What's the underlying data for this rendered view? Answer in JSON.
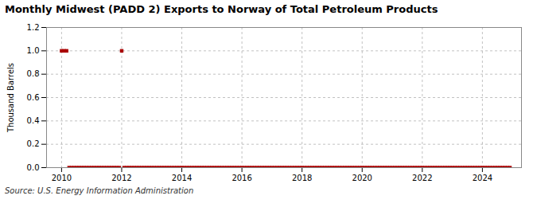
{
  "chart_data": {
    "type": "scatter",
    "title": "Monthly Midwest (PADD 2) Exports to Norway of Total Petroleum Products",
    "ylabel": "Thousand Barrels",
    "source": "Source: U.S. Energy Information Administration",
    "color": "#AA0000",
    "marker": "square",
    "grid": true,
    "xlim": [
      2009.5,
      2025.3
    ],
    "xticks": [
      2010,
      2012,
      2014,
      2016,
      2018,
      2020,
      2022,
      2024
    ],
    "ylim": [
      0.0,
      1.2
    ],
    "yticks": [
      {
        "value": 0.0,
        "label": "0.0"
      },
      0.2,
      0.4,
      0.6,
      0.8,
      {
        "value": 1.0,
        "label": "1.0"
      },
      1.2
    ],
    "x": [
      2010.0,
      2010.083,
      2010.167,
      2010.25,
      2010.333,
      2010.417,
      2010.5,
      2010.583,
      2010.667,
      2010.75,
      2010.833,
      2010.917,
      2011.0,
      2011.083,
      2011.167,
      2011.25,
      2011.333,
      2011.417,
      2011.5,
      2011.583,
      2011.667,
      2011.75,
      2011.833,
      2011.917,
      2012.0,
      2012.083,
      2012.167,
      2012.25,
      2012.333,
      2012.417,
      2012.5,
      2012.583,
      2012.667,
      2012.75,
      2012.833,
      2012.917,
      2013.0,
      2013.083,
      2013.167,
      2013.25,
      2013.333,
      2013.417,
      2013.5,
      2013.583,
      2013.667,
      2013.75,
      2013.833,
      2013.917,
      2014.0,
      2014.083,
      2014.167,
      2014.25,
      2014.333,
      2014.417,
      2014.5,
      2014.583,
      2014.667,
      2014.75,
      2014.833,
      2014.917,
      2015.0,
      2015.083,
      2015.167,
      2015.25,
      2015.333,
      2015.417,
      2015.5,
      2015.583,
      2015.667,
      2015.75,
      2015.833,
      2015.917,
      2016.0,
      2016.083,
      2016.167,
      2016.25,
      2016.333,
      2016.417,
      2016.5,
      2016.583,
      2016.667,
      2016.75,
      2016.833,
      2016.917,
      2017.0,
      2017.083,
      2017.167,
      2017.25,
      2017.333,
      2017.417,
      2017.5,
      2017.583,
      2017.667,
      2017.75,
      2017.833,
      2017.917,
      2018.0,
      2018.083,
      2018.167,
      2018.25,
      2018.333,
      2018.417,
      2018.5,
      2018.583,
      2018.667,
      2018.75,
      2018.833,
      2018.917,
      2019.0,
      2019.083,
      2019.167,
      2019.25,
      2019.333,
      2019.417,
      2019.5,
      2019.583,
      2019.667,
      2019.75,
      2019.833,
      2019.917,
      2020.0,
      2020.083,
      2020.167,
      2020.25,
      2020.333,
      2020.417,
      2020.5,
      2020.583,
      2020.667,
      2020.75,
      2020.833,
      2020.917,
      2021.0,
      2021.083,
      2021.167,
      2021.25,
      2021.333,
      2021.417,
      2021.5,
      2021.583,
      2021.667,
      2021.75,
      2021.833,
      2021.917,
      2022.0,
      2022.083,
      2022.167,
      2022.25,
      2022.333,
      2022.417,
      2022.5,
      2022.583,
      2022.667,
      2022.75,
      2022.833,
      2022.917,
      2023.0,
      2023.083,
      2023.167,
      2023.25,
      2023.333,
      2023.417,
      2023.5,
      2023.583,
      2023.667,
      2023.75,
      2023.833,
      2023.917,
      2024.0,
      2024.083,
      2024.167,
      2024.25,
      2024.333,
      2024.417,
      2024.5,
      2024.583,
      2024.667,
      2024.75,
      2024.833,
      2024.917
    ],
    "values": [
      1.0,
      1.0,
      1.0,
      0.0,
      0.0,
      0.0,
      0.0,
      0.0,
      0.0,
      0.0,
      0.0,
      0.0,
      0.0,
      0.0,
      0.0,
      0.0,
      0.0,
      0.0,
      0.0,
      0.0,
      0.0,
      0.0,
      0.0,
      0.0,
      1.0,
      0.0,
      0.0,
      0.0,
      0.0,
      0.0,
      0.0,
      0.0,
      0.0,
      0.0,
      0.0,
      0.0,
      0.0,
      0.0,
      0.0,
      0.0,
      0.0,
      0.0,
      0.0,
      0.0,
      0.0,
      0.0,
      0.0,
      0.0,
      0.0,
      0.0,
      0.0,
      0.0,
      0.0,
      0.0,
      0.0,
      0.0,
      0.0,
      0.0,
      0.0,
      0.0,
      0.0,
      0.0,
      0.0,
      0.0,
      0.0,
      0.0,
      0.0,
      0.0,
      0.0,
      0.0,
      0.0,
      0.0,
      0.0,
      0.0,
      0.0,
      0.0,
      0.0,
      0.0,
      0.0,
      0.0,
      0.0,
      0.0,
      0.0,
      0.0,
      0.0,
      0.0,
      0.0,
      0.0,
      0.0,
      0.0,
      0.0,
      0.0,
      0.0,
      0.0,
      0.0,
      0.0,
      0.0,
      0.0,
      0.0,
      0.0,
      0.0,
      0.0,
      0.0,
      0.0,
      0.0,
      0.0,
      0.0,
      0.0,
      0.0,
      0.0,
      0.0,
      0.0,
      0.0,
      0.0,
      0.0,
      0.0,
      0.0,
      0.0,
      0.0,
      0.0,
      0.0,
      0.0,
      0.0,
      0.0,
      0.0,
      0.0,
      0.0,
      0.0,
      0.0,
      0.0,
      0.0,
      0.0,
      0.0,
      0.0,
      0.0,
      0.0,
      0.0,
      0.0,
      0.0,
      0.0,
      0.0,
      0.0,
      0.0,
      0.0,
      0.0,
      0.0,
      0.0,
      0.0,
      0.0,
      0.0,
      0.0,
      0.0,
      0.0,
      0.0,
      0.0,
      0.0,
      0.0,
      0.0,
      0.0,
      0.0,
      0.0,
      0.0,
      0.0,
      0.0,
      0.0,
      0.0,
      0.0,
      0.0,
      0.0,
      0.0,
      0.0,
      0.0,
      0.0,
      0.0,
      0.0,
      0.0,
      0.0,
      0.0,
      0.0,
      0.0
    ]
  }
}
